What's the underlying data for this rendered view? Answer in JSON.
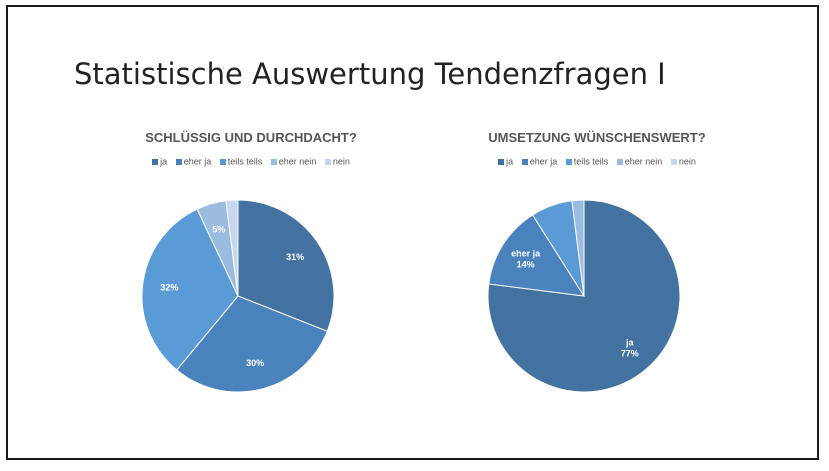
{
  "slide": {
    "title": "Statistische Auswertung Tendenzfragen I"
  },
  "chart_data": [
    {
      "type": "pie",
      "title": "SCHLÜSSIG UND DURCHDACHT?",
      "categories": [
        "ja",
        "eher ja",
        "teils teils",
        "eher nein",
        "nein"
      ],
      "values": [
        31,
        30,
        32,
        5,
        2
      ],
      "data_labels": [
        "31%",
        "30%",
        "32%",
        "5%",
        ""
      ],
      "colors": [
        "#4472a0",
        "#4a82bd",
        "#5b9bd5",
        "#9bbbe0",
        "#c5d7ee"
      ],
      "legend_position": "top"
    },
    {
      "type": "pie",
      "title": "UMSETZUNG WÜNSCHENSWERT?",
      "categories": [
        "ja",
        "eher ja",
        "teils teils",
        "eher nein",
        "nein"
      ],
      "values": [
        77,
        14,
        7,
        2,
        0
      ],
      "data_labels": [
        "ja\n77%",
        "eher ja\n14%",
        "",
        "",
        ""
      ],
      "colors": [
        "#4472a0",
        "#4a82bd",
        "#5b9bd5",
        "#9bbbe0",
        "#c5d7ee"
      ],
      "legend_position": "top"
    }
  ]
}
